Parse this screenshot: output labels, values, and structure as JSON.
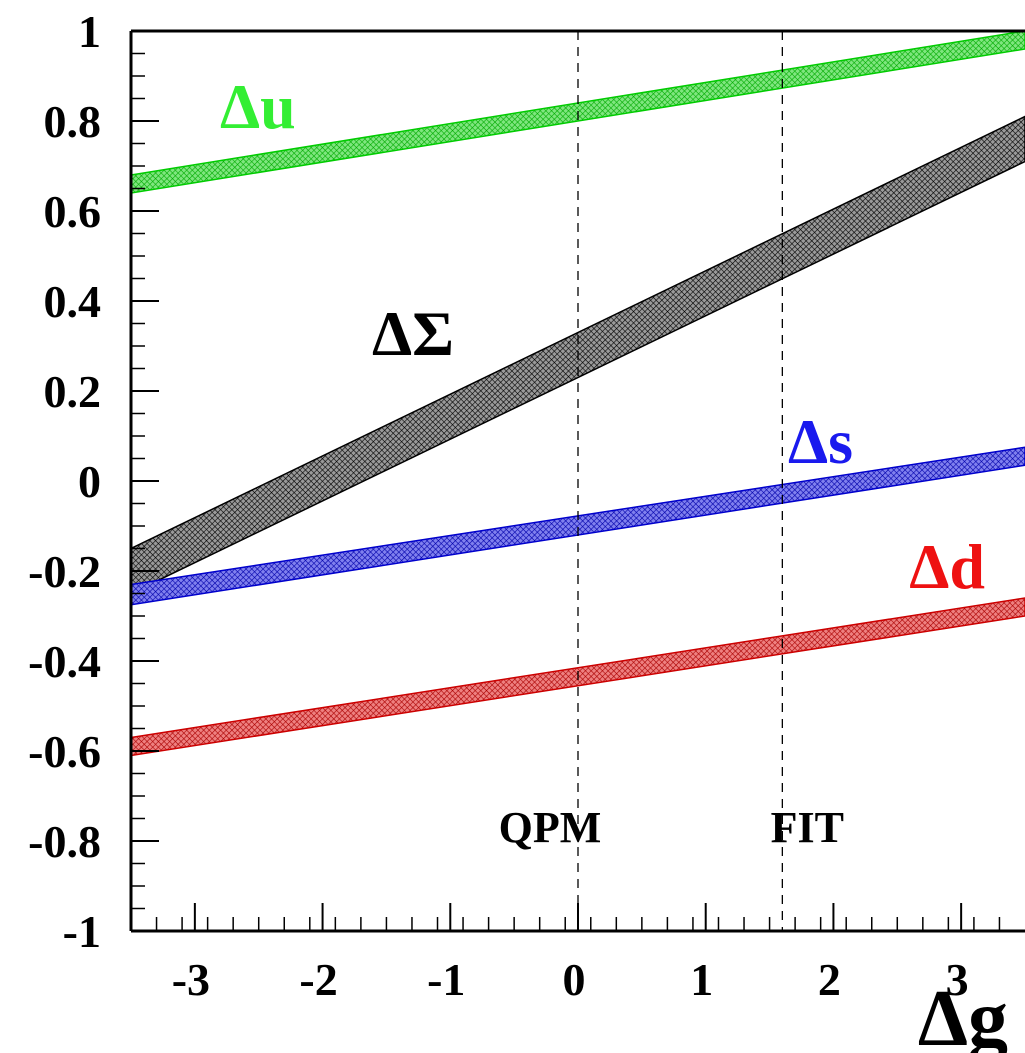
{
  "chart_data": {
    "type": "area",
    "title": "",
    "xlabel": "Δg",
    "ylabel": "",
    "xlim": [
      -3.5,
      3.5
    ],
    "ylim": [
      -1,
      1
    ],
    "x_ticks": [
      -3,
      -2,
      -1,
      0,
      1,
      2,
      3
    ],
    "x_tick_labels": [
      "-3",
      "-2",
      "-1",
      "0",
      "1",
      "2",
      "3"
    ],
    "y_ticks": [
      1,
      0.8,
      0.6,
      0.4,
      0.2,
      0,
      -0.2,
      -0.4,
      -0.6,
      -0.8,
      -1
    ],
    "y_tick_labels": [
      "1",
      "0.8",
      "0.6",
      "0.4",
      "0.2",
      "0",
      "-0.2",
      "-0.4",
      "-0.6",
      "-0.8",
      "-1"
    ],
    "grid": false,
    "series": [
      {
        "name": "Δu",
        "color": "#00cc00",
        "label_color": "#33ee33",
        "x": [
          -3.5,
          3.5
        ],
        "upper": [
          0.68,
          1.0
        ],
        "lower": [
          0.64,
          0.96
        ]
      },
      {
        "name": "ΔΣ",
        "color": "#000000",
        "label_color": "#000000",
        "x": [
          -3.5,
          3.5
        ],
        "upper": [
          -0.15,
          0.81
        ],
        "lower": [
          -0.25,
          0.71
        ]
      },
      {
        "name": "Δs",
        "color": "#0000cc",
        "label_color": "#1a1aee",
        "x": [
          -3.5,
          3.5
        ],
        "upper": [
          -0.23,
          0.075
        ],
        "lower": [
          -0.275,
          0.035
        ]
      },
      {
        "name": "Δd",
        "color": "#cc0000",
        "label_color": "#ee1111",
        "x": [
          -3.5,
          3.5
        ],
        "upper": [
          -0.57,
          -0.26
        ],
        "lower": [
          -0.61,
          -0.3
        ]
      }
    ],
    "vertical_markers": [
      {
        "label": "QPM",
        "x": 0
      },
      {
        "label": "FIT",
        "x": 1.6
      }
    ]
  }
}
